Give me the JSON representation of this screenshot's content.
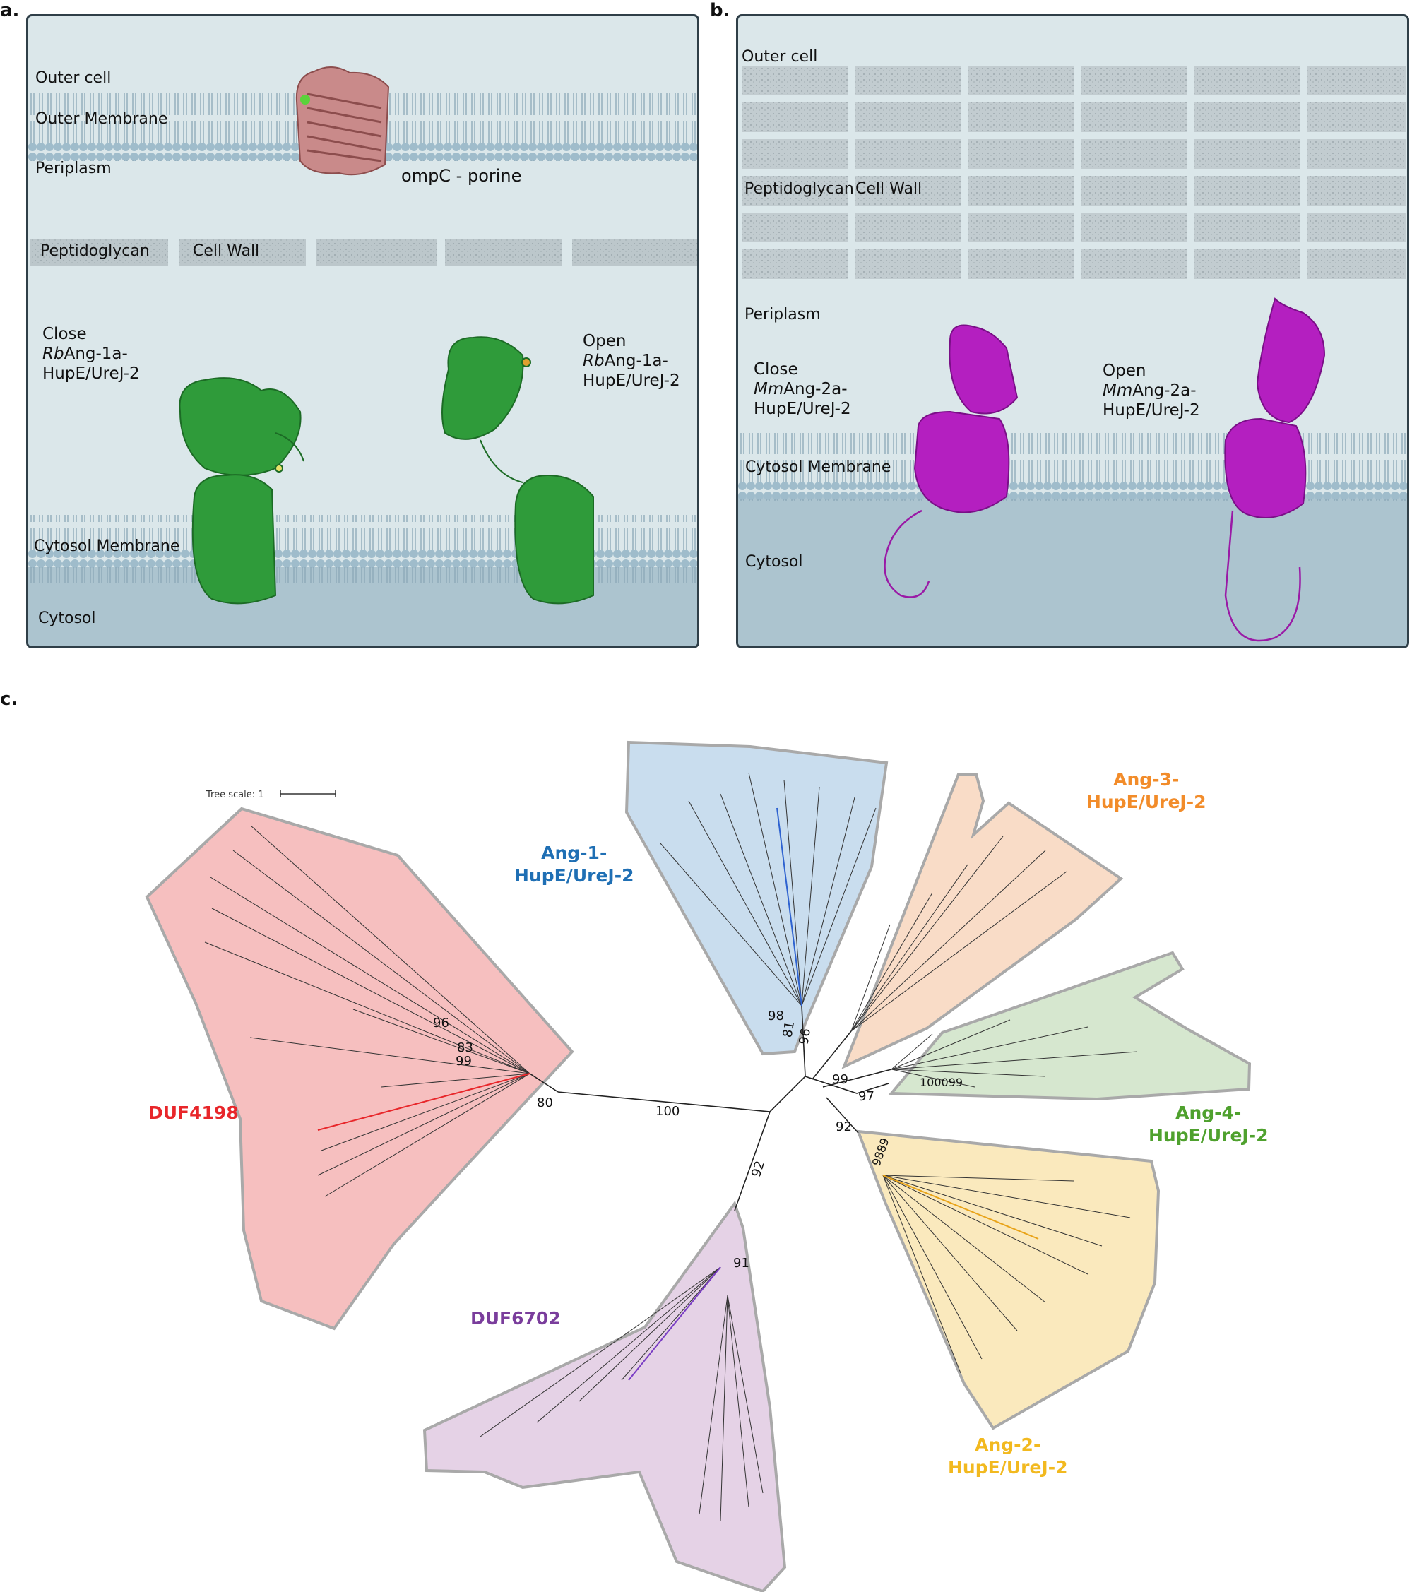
{
  "panel_labels": {
    "a": "a.",
    "b": "b.",
    "c": "c."
  },
  "panel_a": {
    "outer_cell": "Outer cell",
    "outer_membrane": "Outer Membrane",
    "periplasm": "Periplasm",
    "porin": "ompC - porine",
    "peptidoglycan": "Peptidoglycan",
    "cell_wall": "Cell Wall",
    "close_line1": "Close",
    "close_italic": "Rb",
    "close_line2_rest": "Ang-1a-",
    "close_line3": "HupE/UreJ-2",
    "open_line1": "Open",
    "open_italic": "Rb",
    "open_line2_rest": "Ang-1a-",
    "open_line3": "HupE/UreJ-2",
    "cytosol_membrane": "Cytosol Membrane",
    "cytosol": "Cytosol"
  },
  "panel_b": {
    "outer_cell": "Outer cell",
    "peptidoglycan": "Peptidoglycan",
    "cell_wall": "Cell Wall",
    "periplasm": "Periplasm",
    "close_line1": "Close",
    "close_italic": "Mm",
    "close_line2_rest": "Ang-2a-",
    "close_line3": "HupE/UreJ-2",
    "open_line1": "Open",
    "open_italic": "Mm",
    "open_line2_rest": "Ang-2a-",
    "open_line3": "HupE/UreJ-2",
    "cytosol_membrane": "Cytosol Membrane",
    "cytosol": "Cytosol"
  },
  "tree": {
    "scale_label": "Tree scale: 1",
    "clades": [
      {
        "key": "duf4198",
        "line1": "DUF4198",
        "line2": "",
        "color": "#e8262a",
        "fill": "#f6bfbf"
      },
      {
        "key": "ang1",
        "line1": "Ang-1-",
        "line2": "HupE/UreJ-2",
        "color": "#1f6fb4",
        "fill": "#c9ddee"
      },
      {
        "key": "ang3",
        "line1": "Ang-3-",
        "line2": "HupE/UreJ-2",
        "color": "#f28c2a",
        "fill": "#f9dcc7"
      },
      {
        "key": "ang4",
        "line1": "Ang-4-",
        "line2": "HupE/UreJ-2",
        "color": "#4fa12e",
        "fill": "#d6e7cf"
      },
      {
        "key": "ang2",
        "line1": "Ang-2-",
        "line2": "HupE/UreJ-2",
        "color": "#f2b91f",
        "fill": "#fae9bd"
      },
      {
        "key": "duf6702",
        "line1": "DUF6702",
        "line2": "",
        "color": "#7a3d9c",
        "fill": "#e5d2e6"
      }
    ],
    "bootstrap": {
      "center": "100",
      "duf6702_branch": "92",
      "duf6702_inner": "91",
      "ang3_branch": "99",
      "ang4_branch": "97",
      "ang2_branch": "92",
      "duf4198_node": "80",
      "duf4198_a": "96",
      "duf4198_b": "83",
      "duf4198_c": "99",
      "ang1_a": "81",
      "ang1_b": "96",
      "ang1_c": "98",
      "ang4_tip": "100099",
      "ang2_tip": "9889"
    }
  }
}
